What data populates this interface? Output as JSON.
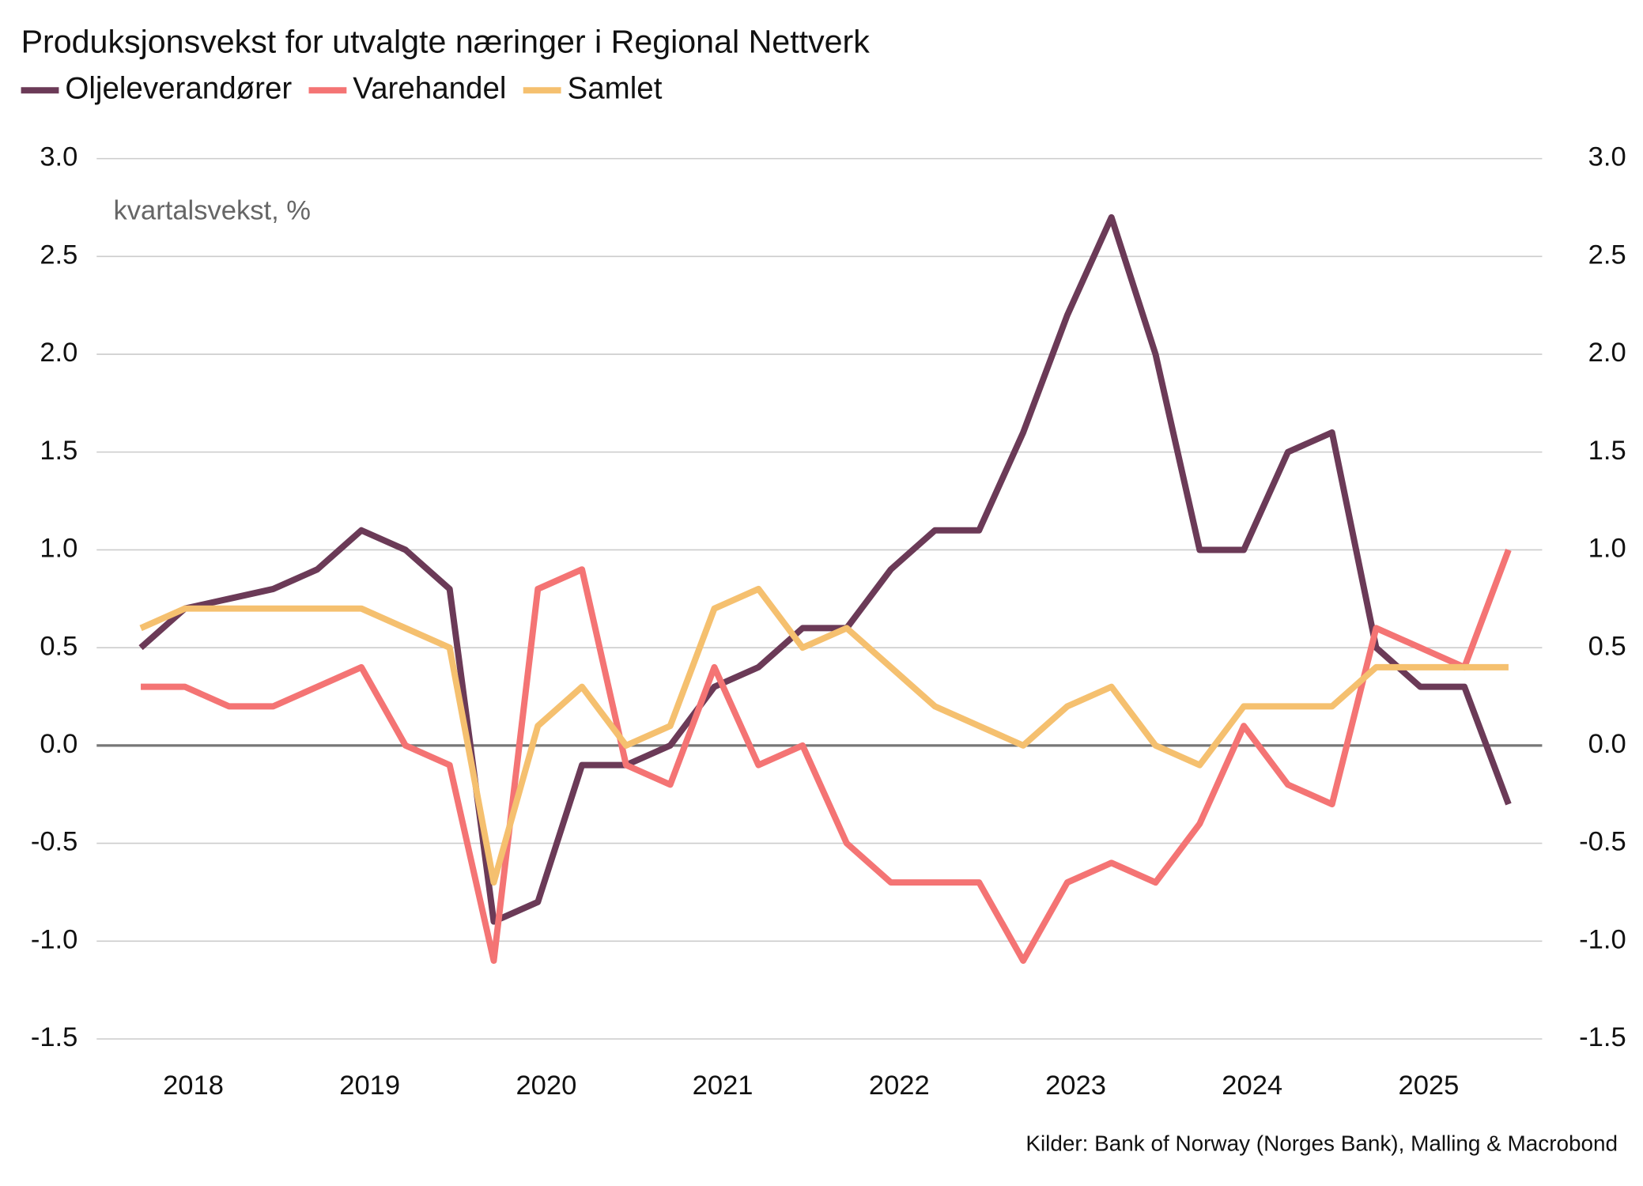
{
  "chart_data": {
    "type": "line",
    "title": "Produksjonsvekst for utvalgte næringer i Regional Nettverk",
    "annotation": "kvartalsvekst, %",
    "source": "Kilder: Bank of Norway (Norges Bank), Malling & Macrobond",
    "categories": [
      null,
      "2018",
      null,
      null,
      null,
      "2019",
      null,
      null,
      null,
      "2020",
      null,
      null,
      null,
      "2021",
      null,
      null,
      null,
      "2022",
      null,
      null,
      null,
      "2023",
      null,
      null,
      null,
      "2024",
      null,
      null,
      null,
      "2025",
      null,
      null
    ],
    "series": [
      {
        "name": "Oljeleverandører",
        "color": "#6b3a57",
        "values": [
          0.5,
          0.7,
          0.75,
          0.8,
          0.9,
          1.1,
          1.0,
          0.8,
          -0.9,
          -0.8,
          -0.1,
          -0.1,
          0.0,
          0.3,
          0.4,
          0.6,
          0.6,
          0.9,
          1.1,
          1.1,
          1.6,
          2.2,
          2.7,
          2.0,
          1.0,
          1.0,
          1.5,
          1.6,
          0.5,
          0.3,
          0.3,
          -0.3
        ]
      },
      {
        "name": "Varehandel",
        "color": "#f47474",
        "values": [
          0.3,
          0.3,
          0.2,
          0.2,
          0.3,
          0.4,
          0.0,
          -0.1,
          -1.1,
          0.8,
          0.9,
          -0.1,
          -0.2,
          0.4,
          -0.1,
          0.0,
          -0.5,
          -0.7,
          -0.7,
          -0.7,
          -1.1,
          -0.7,
          -0.6,
          -0.7,
          -0.4,
          0.1,
          -0.2,
          -0.3,
          0.6,
          0.5,
          0.4,
          1.0
        ]
      },
      {
        "name": "Samlet",
        "color": "#f5c06f",
        "values": [
          0.6,
          0.7,
          0.7,
          0.7,
          0.7,
          0.7,
          0.6,
          0.5,
          -0.7,
          0.1,
          0.3,
          0.0,
          0.1,
          0.7,
          0.8,
          0.5,
          0.6,
          0.4,
          0.2,
          0.1,
          0.0,
          0.2,
          0.3,
          0.0,
          -0.1,
          0.2,
          0.2,
          0.2,
          0.4,
          0.4,
          0.4,
          0.4
        ]
      }
    ],
    "ylim": [
      -1.5,
      3.0
    ],
    "yticks": [
      {
        "value": 3.0,
        "label": "3.0"
      },
      2.5,
      {
        "value": 2.0,
        "label": "2.0"
      },
      1.5,
      {
        "value": 1.0,
        "label": "1.0"
      },
      0.5,
      {
        "value": 0.0,
        "label": "0.0"
      },
      -0.5,
      {
        "value": -1.0,
        "label": "-1.0"
      },
      -1.5
    ],
    "y2lim": [
      -1.5,
      3.0
    ],
    "y2ticks": [
      {
        "value": 3.0,
        "label": "3.0"
      },
      2.5,
      {
        "value": 2.0,
        "label": "2.0"
      },
      1.5,
      {
        "value": 1.0,
        "label": "1.0"
      },
      0.5,
      {
        "value": 0.0,
        "label": "0.0"
      },
      -0.5,
      {
        "value": -1.0,
        "label": "-1.0"
      },
      -1.5
    ],
    "grid": true
  }
}
